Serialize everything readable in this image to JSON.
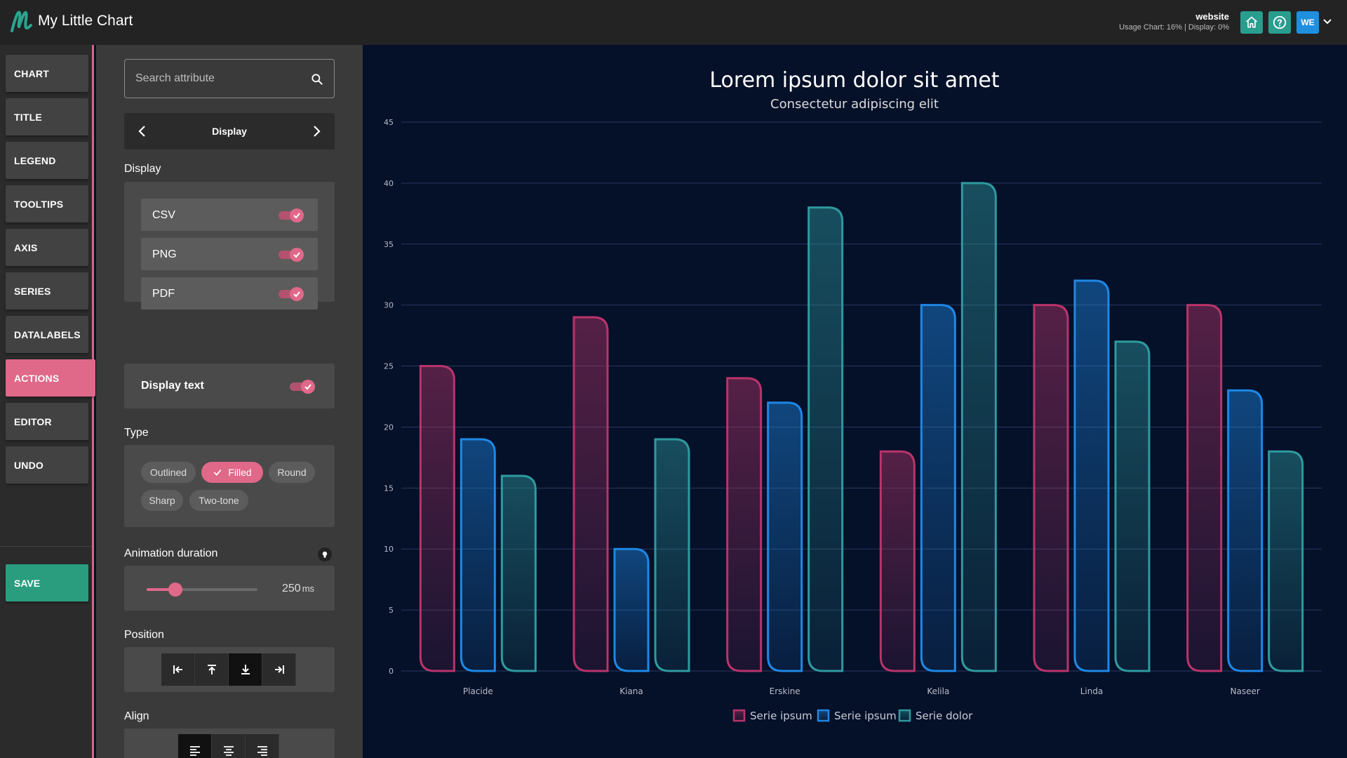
{
  "app": {
    "title": "My Little Chart",
    "site_name": "website",
    "usage": "Usage Chart: 16% | Display: 0%",
    "user_initials": "WE",
    "colors": {
      "accent": "#e06889",
      "teal": "#2a9d8f",
      "save": "#2a9d7f",
      "blue": "#1f8fe0"
    }
  },
  "nav": {
    "items": [
      "CHART",
      "TITLE",
      "LEGEND",
      "TOOLTIPS",
      "AXIS",
      "SERIES",
      "DATALABELS",
      "ACTIONS",
      "EDITOR",
      "UNDO"
    ],
    "active": "ACTIONS",
    "save": "SAVE"
  },
  "panel": {
    "search_placeholder": "Search attribute",
    "page": "Display",
    "display": {
      "label": "Display",
      "options": [
        {
          "label": "CSV",
          "on": true
        },
        {
          "label": "PNG",
          "on": true
        },
        {
          "label": "PDF",
          "on": true
        }
      ]
    },
    "display_text": {
      "label": "Display text",
      "on": true
    },
    "type": {
      "label": "Type",
      "options": [
        "Outlined",
        "Filled",
        "Round",
        "Sharp",
        "Two-tone"
      ],
      "selected": "Filled"
    },
    "animation": {
      "label": "Animation duration",
      "value": "250",
      "unit": "ms",
      "fraction": 0.25
    },
    "position": {
      "label": "Position",
      "options": [
        "left",
        "top",
        "bottom",
        "right"
      ],
      "selected": "bottom"
    },
    "align": {
      "label": "Align",
      "options": [
        "left",
        "center",
        "right"
      ],
      "selected": "left"
    }
  },
  "chart_data": {
    "type": "bar",
    "title": "Lorem ipsum dolor sit amet",
    "subtitle": "Consectetur adipiscing elit",
    "categories": [
      "Placide",
      "Kiana",
      "Erskine",
      "Kelila",
      "Linda",
      "Naseer"
    ],
    "series": [
      {
        "name": "Serie ipsum",
        "color": "#b8346a",
        "values": [
          25,
          29,
          24,
          18,
          30,
          30
        ]
      },
      {
        "name": "Serie ipsum",
        "color": "#1e88e5",
        "values": [
          19,
          10,
          22,
          30,
          32,
          23
        ]
      },
      {
        "name": "Serie dolor",
        "color": "#2e9aa0",
        "values": [
          16,
          19,
          38,
          40,
          27,
          18
        ]
      }
    ],
    "ylim": [
      0,
      45
    ],
    "yticks": [
      0,
      5,
      10,
      15,
      20,
      25,
      30,
      35,
      40,
      45
    ],
    "grid": true,
    "legend": "bottom-center",
    "xlabel": "",
    "ylabel": ""
  }
}
